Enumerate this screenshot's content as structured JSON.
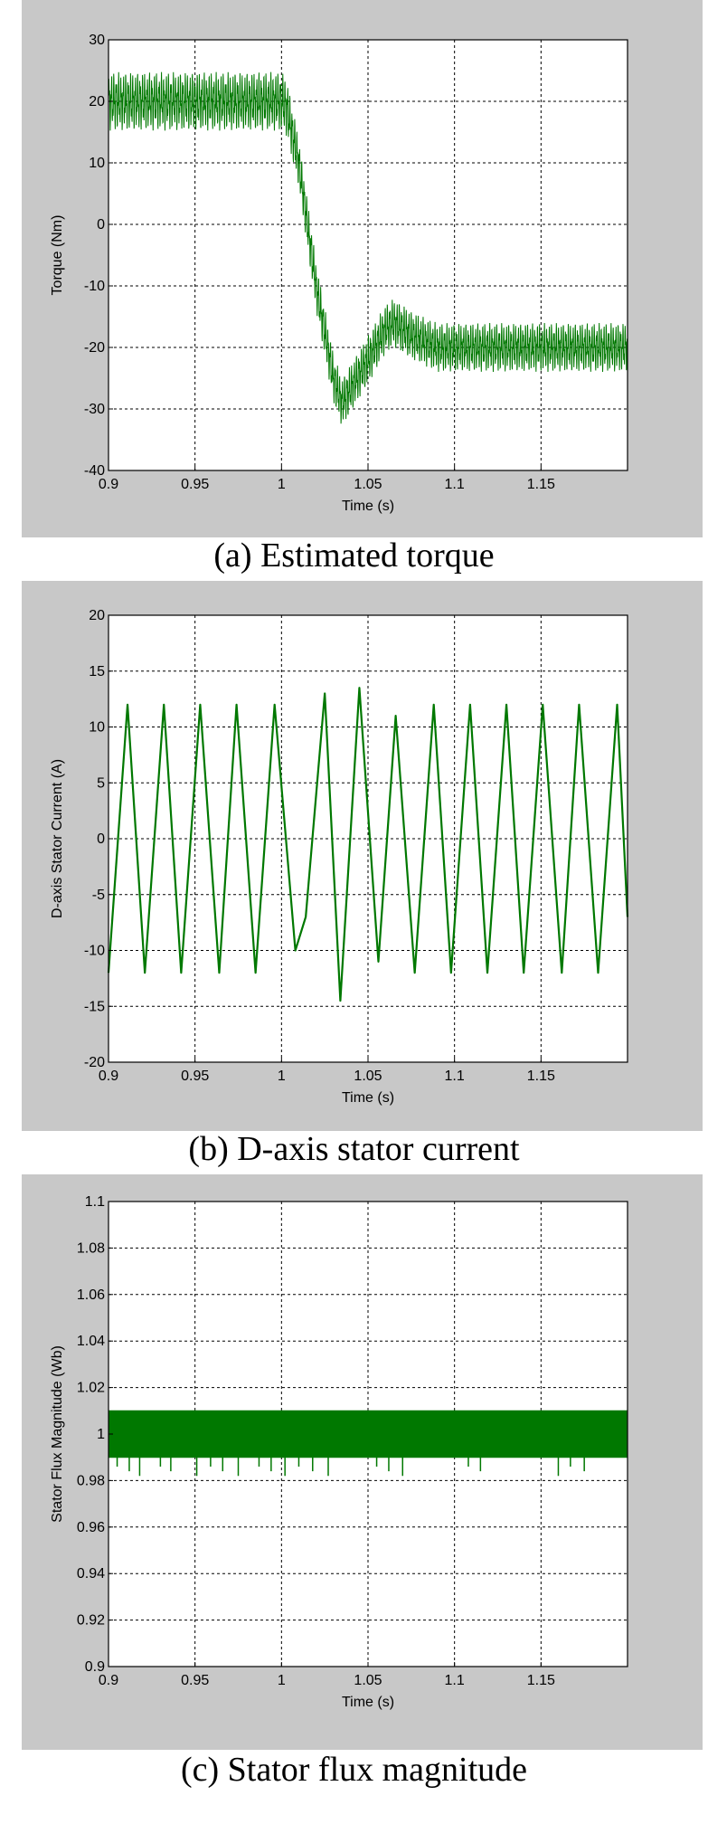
{
  "colors": {
    "panel_bg": "#c8c8c8",
    "plot_bg": "#ffffff",
    "series": "#007800",
    "grid": "#000000"
  },
  "chart_data": [
    {
      "type": "line",
      "caption": "(a)  Estimated torque",
      "xlabel": "Time (s)",
      "ylabel": "Torque (Nm)",
      "xlim": [
        0.9,
        1.2
      ],
      "ylim": [
        -40,
        30
      ],
      "xticks": [
        0.9,
        0.95,
        1,
        1.05,
        1.1,
        1.15
      ],
      "xtick_labels": [
        "0.9",
        "0.95",
        "1",
        "1.05",
        "1.1",
        "1.15"
      ],
      "yticks": [
        -40,
        -30,
        -20,
        -10,
        0,
        10,
        20,
        30
      ],
      "ytick_labels": [
        "-40",
        "-30",
        "-20",
        "-10",
        "0",
        "10",
        "20",
        "30"
      ],
      "grid": true,
      "series": [
        {
          "x": [
            0.9,
            1.0,
            1.003,
            1.01,
            1.02,
            1.03,
            1.035,
            1.05,
            1.06,
            1.065,
            1.075,
            1.09,
            1.1,
            1.12,
            1.15,
            1.2
          ],
          "y": [
            20,
            20,
            19,
            10,
            -10,
            -25,
            -29,
            -22,
            -17,
            -16,
            -18,
            -20,
            -20,
            -20,
            -20,
            -20
          ],
          "ripple": [
            3,
            3,
            3,
            2.5,
            2.5,
            2.5,
            2.5,
            2.5,
            2.5,
            2.5,
            2.5,
            2.5,
            2.5,
            2.5,
            2.5,
            2.5
          ]
        }
      ]
    },
    {
      "type": "line",
      "caption": "(b) D-axis stator current",
      "xlabel": "Time (s)",
      "ylabel": "D-axis Stator Current (A)",
      "xlim": [
        0.9,
        1.2
      ],
      "ylim": [
        -20,
        20
      ],
      "xticks": [
        0.9,
        0.95,
        1,
        1.05,
        1.1,
        1.15
      ],
      "xtick_labels": [
        "0.9",
        "0.95",
        "1",
        "1.05",
        "1.1",
        "1.15"
      ],
      "yticks": [
        -20,
        -15,
        -10,
        -5,
        0,
        5,
        10,
        15,
        20
      ],
      "ytick_labels": [
        "-20",
        "-15",
        "-10",
        "-5",
        "0",
        "5",
        "10",
        "15",
        "20"
      ],
      "grid": true,
      "series": [
        {
          "x": [
            0.9,
            0.911,
            0.921,
            0.932,
            0.942,
            0.953,
            0.964,
            0.974,
            0.985,
            0.996,
            1.008,
            1.014,
            1.025,
            1.034,
            1.045,
            1.056,
            1.066,
            1.077,
            1.088,
            1.098,
            1.109,
            1.119,
            1.13,
            1.14,
            1.151,
            1.162,
            1.172,
            1.183,
            1.194,
            1.2
          ],
          "y": [
            -12,
            12,
            -12,
            12,
            -12,
            12,
            -12,
            12,
            -12,
            12,
            -10,
            -7,
            13,
            -14.5,
            13.5,
            -11,
            11,
            -12,
            12,
            -12,
            12,
            -12,
            12,
            -12,
            12,
            -12,
            12,
            -12,
            12,
            -7
          ]
        }
      ]
    },
    {
      "type": "area",
      "caption": "(c) Stator flux magnitude",
      "xlabel": "Time (s)",
      "ylabel": "Stator Flux Magnitude (Wb)",
      "xlim": [
        0.9,
        1.2
      ],
      "ylim": [
        0.9,
        1.1
      ],
      "xticks": [
        0.9,
        0.95,
        1,
        1.05,
        1.1,
        1.15
      ],
      "xtick_labels": [
        "0.9",
        "0.95",
        "1",
        "1.05",
        "1.1",
        "1.15"
      ],
      "yticks": [
        0.9,
        0.92,
        0.94,
        0.96,
        0.98,
        1,
        1.02,
        1.04,
        1.06,
        1.08,
        1.1
      ],
      "ytick_labels": [
        "0.9",
        "0.92",
        "0.94",
        "0.96",
        "0.98",
        "1",
        "1.02",
        "1.04",
        "1.06",
        "1.08",
        "1.1"
      ],
      "grid": true,
      "series": [
        {
          "x": [
            0.9,
            1.2
          ],
          "upper": [
            1.01,
            1.01
          ],
          "lower": [
            0.99,
            0.99
          ]
        }
      ]
    }
  ]
}
